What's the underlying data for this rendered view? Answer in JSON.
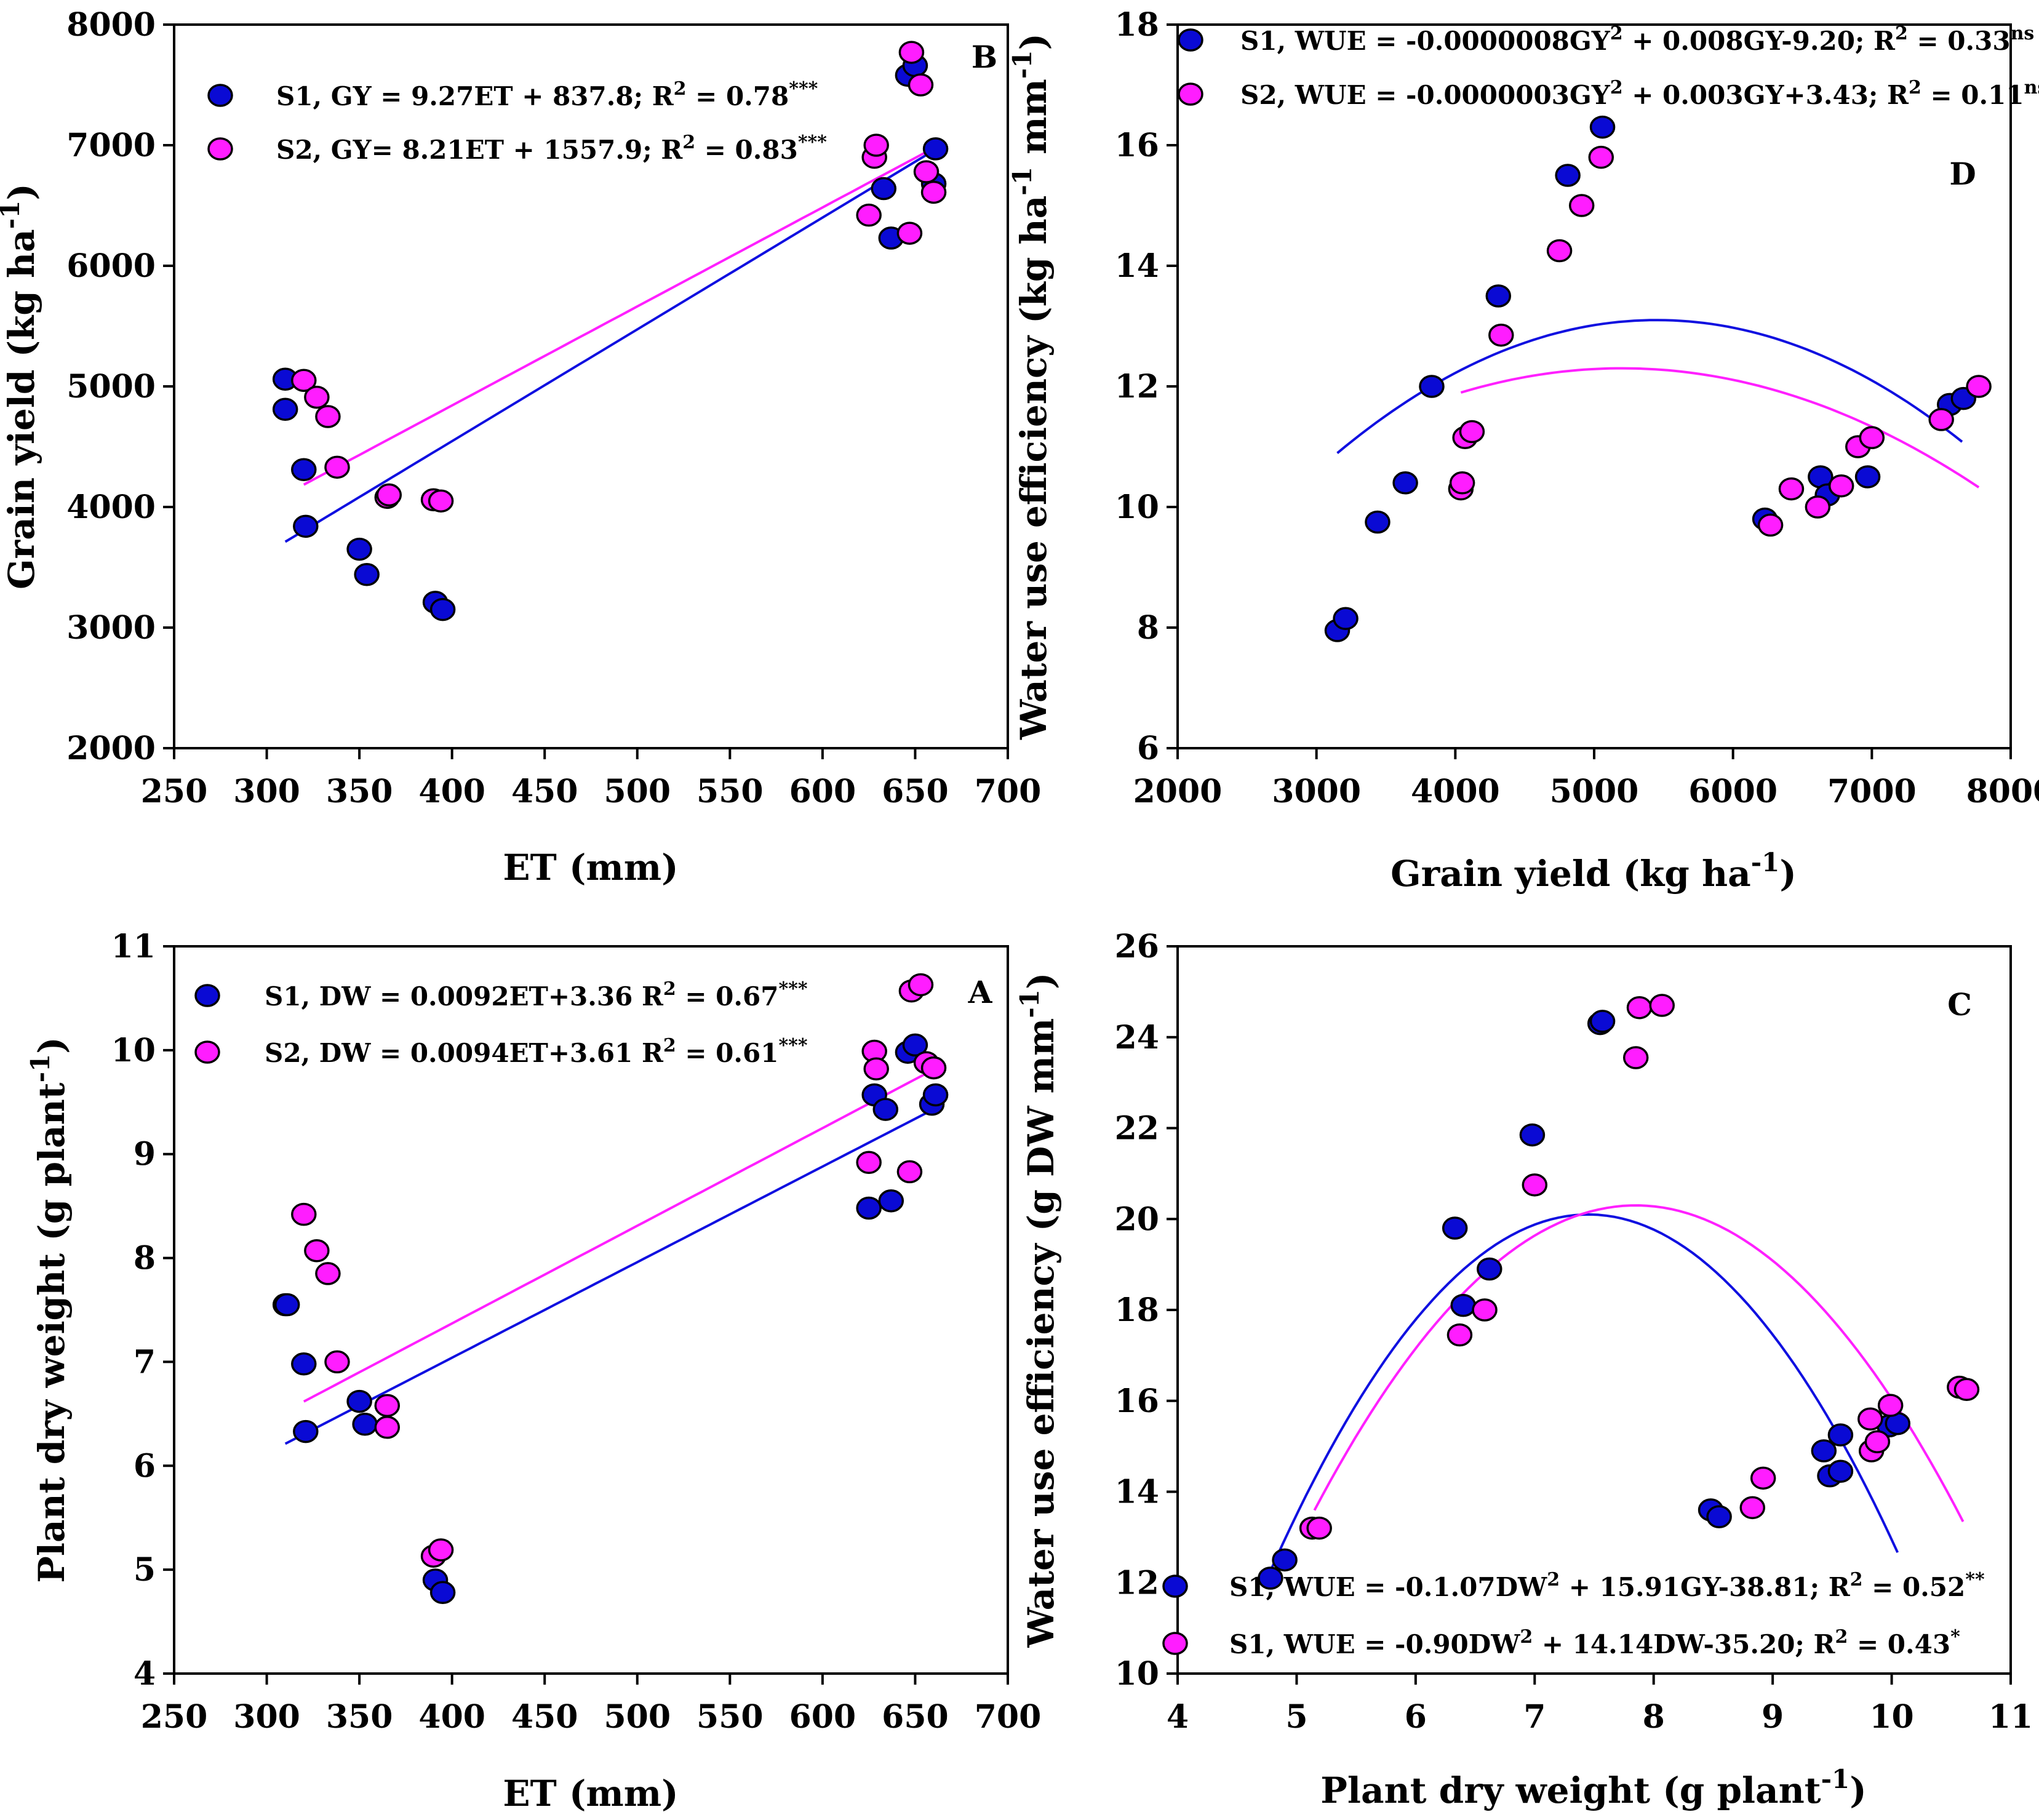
{
  "colors": {
    "S1": "#0a0ad4",
    "S2": "#ff1dff",
    "S1_line": "#1010e0",
    "S2_line": "#ff20ff"
  },
  "chart_data": [
    {
      "id": "B",
      "type": "scatter",
      "panel_label": "B",
      "xlabel": "ET (mm)",
      "ylabel": "Grain yield (kg ha",
      "ylabel_sup": "-1",
      "ylabel_close": ")",
      "xlim": [
        250,
        700
      ],
      "ylim": [
        2000,
        8000
      ],
      "xticks": [
        250,
        300,
        350,
        400,
        450,
        500,
        550,
        600,
        650,
        700
      ],
      "yticks": [
        2000,
        3000,
        4000,
        5000,
        6000,
        7000,
        8000
      ],
      "legend": [
        {
          "series": "S1",
          "text": "S1, GY = 9.27ET + 837.8;  R",
          "sup1": "2",
          "text2": " = 0.78",
          "sup2": "***"
        },
        {
          "series": "S2",
          "text": "S2, GY= 8.21ET + 1557.9;  R",
          "sup1": "2",
          "text2": " = 0.83",
          "sup2": "***"
        }
      ],
      "series": [
        {
          "name": "S1",
          "points": [
            [
              310,
              5060
            ],
            [
              310,
              4810
            ],
            [
              320,
              4310
            ],
            [
              321,
              3840
            ],
            [
              350,
              3650
            ],
            [
              354,
              3440
            ],
            [
              391,
              3210
            ],
            [
              395,
              3150
            ],
            [
              633,
              6640
            ],
            [
              637,
              6230
            ],
            [
              646,
              7580
            ],
            [
              650,
              7660
            ],
            [
              661,
              6970
            ],
            [
              660,
              6680
            ]
          ]
        },
        {
          "name": "S2",
          "points": [
            [
              320,
              5050
            ],
            [
              327,
              4910
            ],
            [
              333,
              4750
            ],
            [
              338,
              4330
            ],
            [
              365,
              4080
            ],
            [
              366,
              4100
            ],
            [
              390,
              4060
            ],
            [
              394,
              4050
            ],
            [
              625,
              6420
            ],
            [
              628,
              6900
            ],
            [
              629,
              7000
            ],
            [
              647,
              6270
            ],
            [
              648,
              7770
            ],
            [
              653,
              7500
            ],
            [
              656,
              6780
            ],
            [
              660,
              6610
            ]
          ]
        }
      ],
      "fits": [
        {
          "series": "S1",
          "kind": "linear",
          "a": 9.27,
          "b": 837.8,
          "x_range": [
            310,
            662
          ]
        },
        {
          "series": "S2",
          "kind": "linear",
          "a": 8.21,
          "b": 1557.9,
          "x_range": [
            320,
            662
          ]
        }
      ]
    },
    {
      "id": "D",
      "type": "scatter",
      "panel_label": "D",
      "xlabel": "Grain yield (kg ha",
      "xlabel_sup": "-1",
      "xlabel_close": ")",
      "ylabel": "Water use efficiency (kg ha",
      "ylabel_sup": "-1",
      "ylabel_mid": " mm",
      "ylabel_sup2": "-1",
      "ylabel_close": ")",
      "xlim": [
        2000,
        8000
      ],
      "ylim": [
        6,
        18
      ],
      "xticks": [
        2000,
        3000,
        4000,
        5000,
        6000,
        7000,
        8000
      ],
      "yticks": [
        6,
        8,
        10,
        12,
        14,
        16,
        18
      ],
      "legend": [
        {
          "series": "S1",
          "text": "S1, WUE = -0.0000008GY",
          "sup1": "2",
          "text2": " + 0.008GY-9.20; R",
          "sup2": "2",
          "text3": " = 0.33",
          "sup3": "ns"
        },
        {
          "series": "S2",
          "text": "S2, WUE = -0.0000003GY",
          "sup1": "2",
          "text2": " + 0.003GY+3.43; R",
          "sup2": "2",
          "text3": " = 0.11",
          "sup3": "ns"
        }
      ],
      "series": [
        {
          "name": "S1",
          "points": [
            [
              3150,
              7.95
            ],
            [
              3210,
              8.15
            ],
            [
              3440,
              9.75
            ],
            [
              3640,
              10.4
            ],
            [
              3830,
              12.0
            ],
            [
              4310,
              13.5
            ],
            [
              4810,
              15.5
            ],
            [
              5060,
              16.3
            ],
            [
              6230,
              9.8
            ],
            [
              6630,
              10.5
            ],
            [
              6680,
              10.2
            ],
            [
              6970,
              10.5
            ],
            [
              7560,
              11.7
            ],
            [
              7660,
              11.8
            ]
          ]
        },
        {
          "name": "S2",
          "points": [
            [
              4040,
              10.3
            ],
            [
              4050,
              10.4
            ],
            [
              4070,
              11.15
            ],
            [
              4120,
              11.25
            ],
            [
              4330,
              12.85
            ],
            [
              4750,
              14.25
            ],
            [
              4910,
              15.0
            ],
            [
              5050,
              15.8
            ],
            [
              6270,
              9.7
            ],
            [
              6420,
              10.3
            ],
            [
              6610,
              10.0
            ],
            [
              6780,
              10.35
            ],
            [
              6900,
              11.0
            ],
            [
              7000,
              11.15
            ],
            [
              7500,
              11.45
            ],
            [
              7770,
              12.0
            ]
          ]
        }
      ],
      "fits": [
        {
          "series": "S1",
          "kind": "vertex_quadratic",
          "vx": 5450,
          "vy": 13.1,
          "k": 4.17e-07,
          "x_range": [
            3150,
            7650
          ]
        },
        {
          "series": "S2",
          "kind": "vertex_quadratic",
          "vx": 5200,
          "vy": 12.3,
          "k": 2.99e-07,
          "x_range": [
            4040,
            7770
          ]
        }
      ]
    },
    {
      "id": "A",
      "type": "scatter",
      "panel_label": "A",
      "xlabel": "ET (mm)",
      "ylabel": "Plant dry weight (g plant",
      "ylabel_sup": "-1",
      "ylabel_close": ")",
      "xlim": [
        250,
        700
      ],
      "ylim": [
        4,
        11
      ],
      "xticks": [
        250,
        300,
        350,
        400,
        450,
        500,
        550,
        600,
        650,
        700
      ],
      "yticks": [
        4,
        5,
        6,
        7,
        8,
        9,
        10,
        11
      ],
      "legend": [
        {
          "series": "S1",
          "text": "S1, DW = 0.0092ET+3.36    R",
          "sup1": "2",
          "text2": " = 0.67",
          "sup2": "***"
        },
        {
          "series": "S2",
          "text": "S2, DW = 0.0094ET+3.61    R",
          "sup1": "2",
          "text2": " = 0.61",
          "sup2": "***"
        }
      ],
      "series": [
        {
          "name": "S1",
          "points": [
            [
              310,
              7.55
            ],
            [
              311,
              7.55
            ],
            [
              320,
              6.98
            ],
            [
              321,
              6.33
            ],
            [
              350,
              6.62
            ],
            [
              353,
              6.4
            ],
            [
              391,
              4.9
            ],
            [
              395,
              4.78
            ],
            [
              625,
              8.48
            ],
            [
              628,
              9.57
            ],
            [
              634,
              9.43
            ],
            [
              637,
              8.55
            ],
            [
              646,
              9.98
            ],
            [
              650,
              10.05
            ],
            [
              659,
              9.48
            ],
            [
              661,
              9.57
            ]
          ]
        },
        {
          "name": "S2",
          "points": [
            [
              320,
              8.42
            ],
            [
              327,
              8.07
            ],
            [
              333,
              7.85
            ],
            [
              338,
              7.0
            ],
            [
              365,
              6.58
            ],
            [
              365,
              6.37
            ],
            [
              390,
              5.13
            ],
            [
              394,
              5.19
            ],
            [
              625,
              8.92
            ],
            [
              628,
              9.99
            ],
            [
              629,
              9.82
            ],
            [
              647,
              8.83
            ],
            [
              648,
              10.57
            ],
            [
              653,
              10.63
            ],
            [
              656,
              9.88
            ],
            [
              660,
              9.83
            ]
          ]
        }
      ],
      "fits": [
        {
          "series": "S1",
          "kind": "linear",
          "a": 0.0092,
          "b": 3.36,
          "x_range": [
            310,
            662
          ]
        },
        {
          "series": "S2",
          "kind": "linear",
          "a": 0.0094,
          "b": 3.61,
          "x_range": [
            320,
            662
          ]
        }
      ]
    },
    {
      "id": "C",
      "type": "scatter",
      "panel_label": "C",
      "xlabel": "Plant dry weight (g plant",
      "xlabel_sup": "-1",
      "xlabel_close": ")",
      "ylabel": "Water use efficiency (g DW mm",
      "ylabel_sup": "-1",
      "ylabel_close": ")",
      "xlim": [
        4,
        11
      ],
      "ylim": [
        10,
        26
      ],
      "xticks": [
        4,
        5,
        6,
        7,
        8,
        9,
        10,
        11
      ],
      "yticks": [
        10,
        12,
        14,
        16,
        18,
        20,
        22,
        24,
        26
      ],
      "legend": [
        {
          "series": "S1",
          "text": "S1, WUE = -0.1.07DW",
          "sup1": "2",
          "text2": " + 15.91GY-38.81; R",
          "sup2": "2",
          "text3": " = 0.52",
          "sup3": "**"
        },
        {
          "series": "S2",
          "text": "S1, WUE = -0.90DW",
          "sup1": "2",
          "text2": " + 14.14DW-35.20; R",
          "sup2": "2",
          "text3": " = 0.43",
          "sup3": "*"
        }
      ],
      "series": [
        {
          "name": "S1",
          "points": [
            [
              4.78,
              12.1
            ],
            [
              4.9,
              12.5
            ],
            [
              6.33,
              19.8
            ],
            [
              6.4,
              18.1
            ],
            [
              6.62,
              18.9
            ],
            [
              6.98,
              21.85
            ],
            [
              7.55,
              24.3
            ],
            [
              7.57,
              24.35
            ],
            [
              8.48,
              13.6
            ],
            [
              8.55,
              13.45
            ],
            [
              9.43,
              14.9
            ],
            [
              9.48,
              14.35
            ],
            [
              9.57,
              14.45
            ],
            [
              9.57,
              15.25
            ],
            [
              9.98,
              15.45
            ],
            [
              10.05,
              15.5
            ]
          ]
        },
        {
          "name": "S2",
          "points": [
            [
              5.13,
              13.2
            ],
            [
              5.19,
              13.2
            ],
            [
              6.37,
              17.45
            ],
            [
              6.58,
              18.0
            ],
            [
              7.0,
              20.75
            ],
            [
              7.85,
              23.55
            ],
            [
              7.88,
              24.65
            ],
            [
              8.07,
              24.7
            ],
            [
              8.83,
              13.65
            ],
            [
              8.92,
              14.3
            ],
            [
              9.82,
              15.6
            ],
            [
              9.83,
              14.9
            ],
            [
              9.88,
              15.1
            ],
            [
              9.99,
              15.9
            ],
            [
              10.57,
              16.3
            ],
            [
              10.63,
              16.25
            ]
          ]
        }
      ],
      "fits": [
        {
          "series": "S1",
          "kind": "vertex_quadratic",
          "vx": 7.45,
          "vy": 20.1,
          "k": 1.1,
          "x_range": [
            4.75,
            10.05
          ]
        },
        {
          "series": "S2",
          "kind": "vertex_quadratic",
          "vx": 7.85,
          "vy": 20.3,
          "k": 0.92,
          "x_range": [
            5.15,
            10.6
          ]
        }
      ]
    }
  ]
}
